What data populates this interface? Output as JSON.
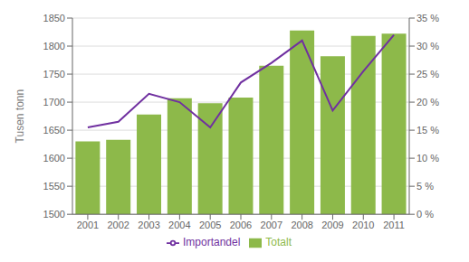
{
  "chart_data": {
    "type": "bar",
    "categories": [
      "2001",
      "2002",
      "2003",
      "2004",
      "2005",
      "2006",
      "2007",
      "2008",
      "2009",
      "2010",
      "2011"
    ],
    "ylabel": "Tusen tonn",
    "ylim": [
      1500,
      1850
    ],
    "yticks": [
      1500,
      1550,
      1600,
      1650,
      1700,
      1750,
      1800,
      1850
    ],
    "y2lim": [
      0.0,
      0.35
    ],
    "y2ticks": [
      {
        "value": 0.0,
        "label": "0 %"
      },
      {
        "value": 0.05,
        "label": "5 %"
      },
      {
        "value": 0.1,
        "label": "10 %"
      },
      {
        "value": 0.15,
        "label": "15 %"
      },
      {
        "value": 0.2,
        "label": "20 %"
      },
      {
        "value": 0.25,
        "label": "25 %"
      },
      {
        "value": 0.3,
        "label": "30 %"
      },
      {
        "value": 0.35,
        "label": "35 %"
      }
    ],
    "grid": true,
    "legend": "bottom",
    "series": [
      {
        "name": "Totalt",
        "type": "bar",
        "color": "#8db94a",
        "values": [
          1630,
          1633,
          1678,
          1707,
          1698,
          1708,
          1765,
          1828,
          1782,
          1818,
          1822
        ]
      },
      {
        "name": "Importandel",
        "type": "line",
        "color": "#7030a0",
        "axis": "y2",
        "values": [
          0.155,
          0.165,
          0.215,
          0.2,
          0.155,
          0.235,
          0.27,
          0.31,
          0.185,
          0.255,
          0.32
        ]
      }
    ]
  }
}
